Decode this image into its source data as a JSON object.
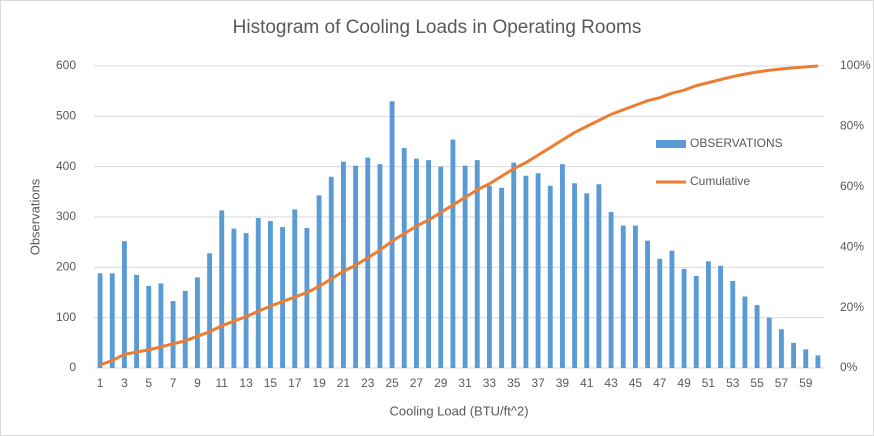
{
  "chart_data": {
    "type": "bar",
    "title": "Histogram of Cooling Loads in Operating Rooms",
    "x_label": "Cooling Load (BTU/ft^2)",
    "y_label": "Observations",
    "categories": [
      1,
      null,
      3,
      null,
      5,
      null,
      7,
      null,
      9,
      null,
      11,
      null,
      13,
      null,
      15,
      null,
      17,
      null,
      19,
      null,
      21,
      null,
      23,
      null,
      25,
      null,
      27,
      null,
      29,
      null,
      31,
      null,
      33,
      null,
      35,
      null,
      37,
      null,
      39,
      null,
      41,
      null,
      43,
      null,
      45,
      null,
      47,
      null,
      49,
      null,
      51,
      null,
      53,
      null,
      55,
      null,
      57,
      null,
      59,
      null
    ],
    "series": [
      {
        "name": "OBSERVATIONS",
        "color": "#5b9bd5",
        "values": [
          188,
          188,
          252,
          185,
          163,
          168,
          133,
          153,
          180,
          228,
          313,
          277,
          268,
          298,
          292,
          280,
          315,
          278,
          343,
          380,
          410,
          402,
          418,
          405,
          530,
          437,
          416,
          413,
          400,
          454,
          402,
          413,
          362,
          358,
          408,
          382,
          387,
          362,
          405,
          367,
          347,
          365,
          310,
          283,
          283,
          253,
          217,
          233,
          197,
          183,
          212,
          203,
          173,
          142,
          125,
          100,
          77,
          50,
          37,
          25
        ]
      },
      {
        "name": "Cumulative",
        "color": "#ed7d31",
        "axis": "y2",
        "type": "line",
        "values": [
          1,
          2.5,
          4.5,
          5.3,
          6,
          7,
          8,
          9,
          10.5,
          12,
          14,
          15.5,
          17,
          18.8,
          20.5,
          22,
          23.5,
          25,
          27,
          29.5,
          32,
          34,
          36.5,
          39,
          42,
          44.5,
          47,
          49,
          51.5,
          54,
          56.5,
          59,
          61,
          63.5,
          66,
          68,
          70.5,
          73,
          75.5,
          78,
          80,
          82,
          84,
          85.5,
          87,
          88.5,
          89.5,
          91,
          92,
          93.5,
          94.5,
          95.5,
          96.5,
          97.3,
          98,
          98.6,
          99,
          99.4,
          99.7,
          100
        ]
      }
    ],
    "ylim": [
      0,
      600
    ],
    "yticks": [
      0,
      100,
      200,
      300,
      400,
      500,
      600
    ],
    "y2lim": [
      0,
      100
    ],
    "y2ticks": [
      {
        "value": 0,
        "label": "0%"
      },
      {
        "value": 20,
        "label": "20%"
      },
      {
        "value": 40,
        "label": "40%"
      },
      {
        "value": 60,
        "label": "60%"
      },
      {
        "value": 80,
        "label": "80%"
      },
      {
        "value": 100,
        "label": "100%"
      }
    ],
    "grid": true,
    "legend": "right"
  }
}
